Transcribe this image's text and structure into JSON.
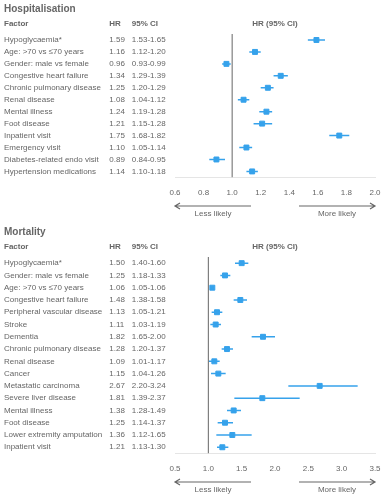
{
  "chart_data": [
    {
      "type": "forest",
      "title": "Hospitalisation",
      "column_headers": [
        "Factor",
        "HR",
        "95% CI"
      ],
      "xlabel": "HR (95% CI)",
      "categories": [
        "Hypoglycaemia*",
        "Age: >70 vs ≤70 years",
        "Gender: male vs female",
        "Congestive heart failure",
        "Chronic pulmonary disease",
        "Renal disease",
        "Mental illness",
        "Foot disease",
        "Inpatient visit",
        "Emergency visit",
        "Diabetes-related endo visit",
        "Hypertension medications"
      ],
      "values": [
        1.59,
        1.16,
        0.96,
        1.34,
        1.25,
        1.08,
        1.24,
        1.21,
        1.75,
        1.1,
        0.89,
        1.14
      ],
      "value_labels": [
        "1.59",
        "1.16",
        "0.96",
        "1.34",
        "1.25",
        "1.08",
        "1.24",
        "1.21",
        "1.75",
        "1.10",
        "0.89",
        "1.14"
      ],
      "ci_lo": [
        1.53,
        1.12,
        0.93,
        1.29,
        1.2,
        1.04,
        1.19,
        1.15,
        1.68,
        1.05,
        0.84,
        1.1
      ],
      "ci_hi": [
        1.65,
        1.2,
        0.99,
        1.39,
        1.29,
        1.12,
        1.28,
        1.28,
        1.82,
        1.14,
        0.95,
        1.18
      ],
      "ci_labels": [
        "1.53-1.65",
        "1.12-1.20",
        "0.93-0.99",
        "1.29-1.39",
        "1.20-1.29",
        "1.04-1.12",
        "1.19-1.28",
        "1.15-1.28",
        "1.68-1.82",
        "1.05-1.14",
        "0.84-0.95",
        "1.10-1.18"
      ],
      "reference_line": 1.0,
      "xlim": [
        0.6,
        2.0
      ],
      "xticks": [
        0.6,
        0.8,
        {
          "value": 1.0,
          "label": "1.0"
        },
        1.2,
        1.4,
        1.6,
        1.8,
        {
          "value": 2.0,
          "label": "2.0"
        }
      ],
      "annotations": [
        "Less likely",
        "More likely"
      ],
      "data_labels": true,
      "grid": false,
      "marker": "square",
      "color": "#36a2eb"
    },
    {
      "type": "forest",
      "title": "Mortality",
      "column_headers": [
        "Factor",
        "HR",
        "95% CI"
      ],
      "xlabel": "HR (95% CI)",
      "categories": [
        "Hypoglycaemia*",
        "Gender: male vs female",
        "Age: >70 vs ≤70 years",
        "Congestive heart failure",
        "Peripheral vascular disease",
        "Stroke",
        "Dementia",
        "Chronic pulmonary disease",
        "Renal disease",
        "Cancer",
        "Metastatic carcinoma",
        "Severe liver disease",
        "Mental illness",
        "Foot disease",
        "Lower extremity amputation",
        "Inpatient visit"
      ],
      "values": [
        1.5,
        1.25,
        1.06,
        1.48,
        1.13,
        1.11,
        1.82,
        1.28,
        1.09,
        1.15,
        2.67,
        1.81,
        1.38,
        1.25,
        1.36,
        1.21
      ],
      "value_labels": [
        "1.50",
        "1.25",
        "1.06",
        "1.48",
        "1.13",
        "1.11",
        "1.82",
        "1.28",
        "1.09",
        "1.15",
        "2.67",
        "1.81",
        "1.38",
        "1.25",
        "1.36",
        "1.21"
      ],
      "ci_lo": [
        1.4,
        1.18,
        1.05,
        1.38,
        1.05,
        1.03,
        1.65,
        1.2,
        1.01,
        1.04,
        2.2,
        1.39,
        1.28,
        1.14,
        1.12,
        1.13
      ],
      "ci_hi": [
        1.6,
        1.33,
        1.06,
        1.58,
        1.21,
        1.19,
        2.0,
        1.37,
        1.17,
        1.26,
        3.24,
        2.37,
        1.49,
        1.37,
        1.65,
        1.3
      ],
      "ci_labels": [
        "1.40-1.60",
        "1.18-1.33",
        "1.05-1.06",
        "1.38-1.58",
        "1.05-1.21",
        "1.03-1.19",
        "1.65-2.00",
        "1.20-1.37",
        "1.01-1.17",
        "1.04-1.26",
        "2.20-3.24",
        "1.39-2.37",
        "1.28-1.49",
        "1.14-1.37",
        "1.12-1.65",
        "1.13-1.30"
      ],
      "reference_line": 1.0,
      "xlim": [
        0.5,
        3.5
      ],
      "xticks": [
        0.5,
        {
          "value": 1.0,
          "label": "1.0"
        },
        1.5,
        {
          "value": 2.0,
          "label": "2.0"
        },
        2.5,
        {
          "value": 3.0,
          "label": "3.0"
        },
        3.5
      ],
      "annotations": [
        "Less likely",
        "More likely"
      ],
      "data_labels": true,
      "grid": false,
      "marker": "square",
      "color": "#36a2eb"
    }
  ]
}
